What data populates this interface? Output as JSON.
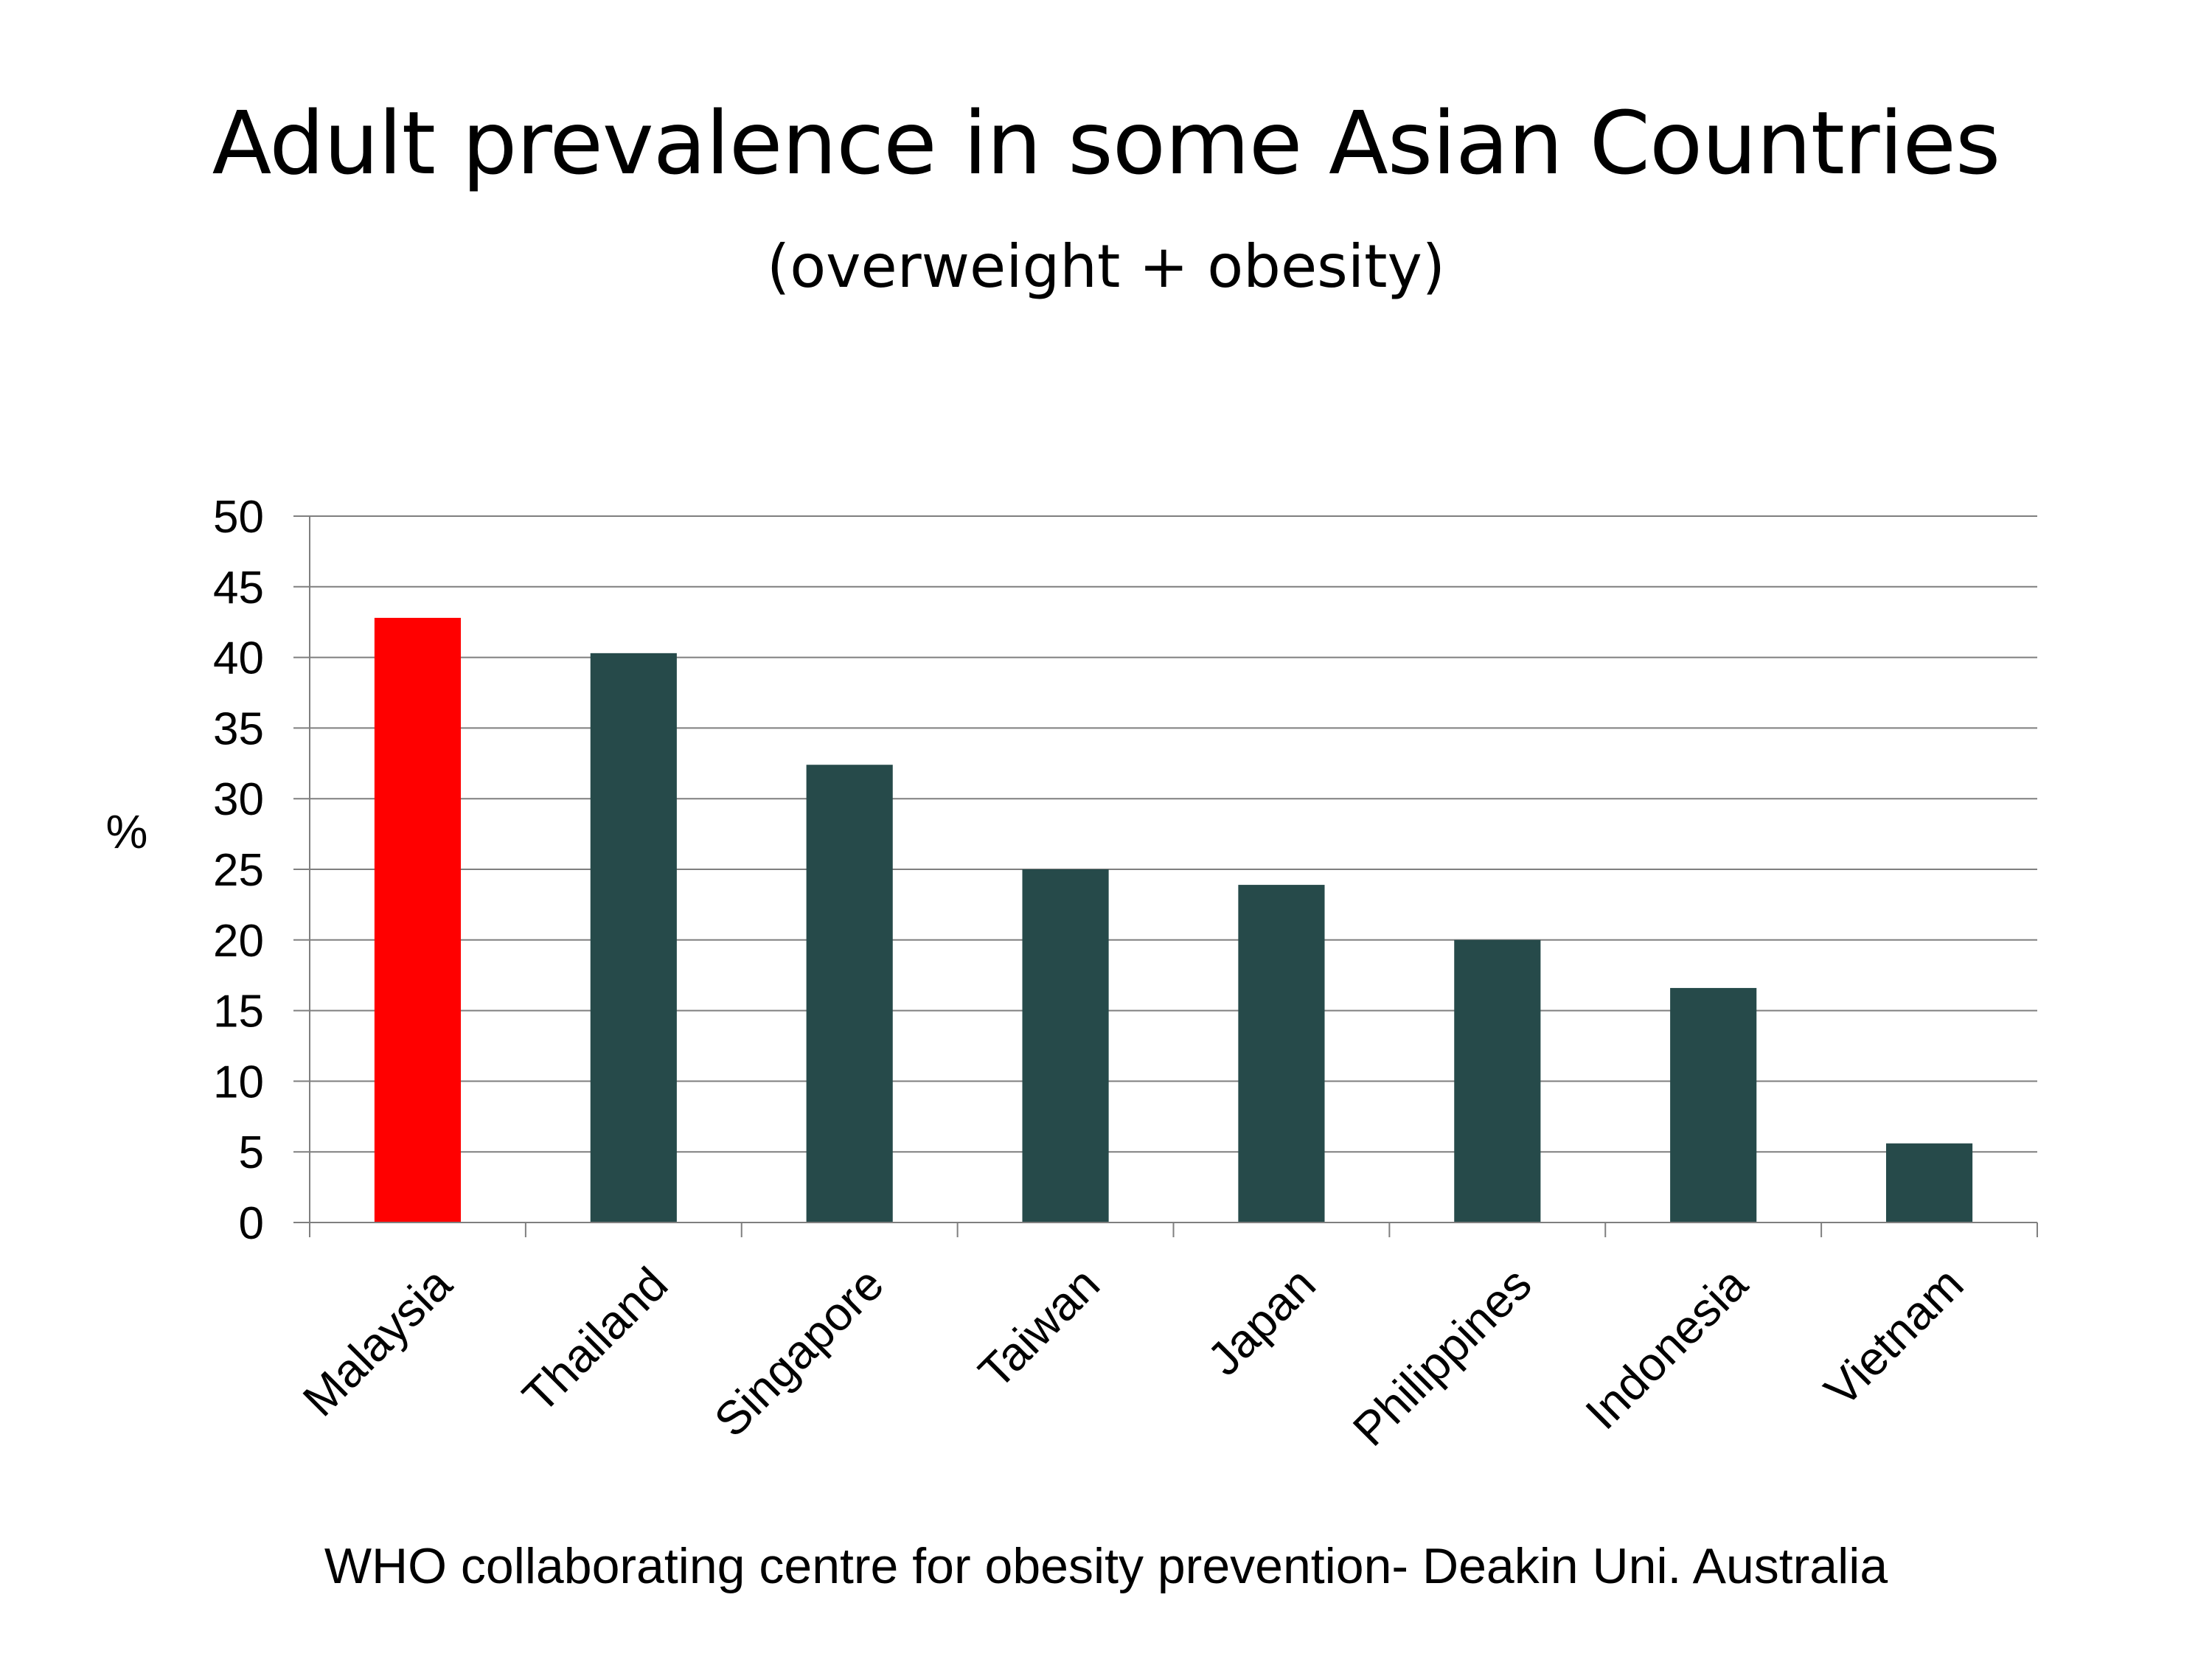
{
  "slide": {
    "title": "Adult prevalence in some Asian Countries",
    "subtitle": "(overweight + obesity)",
    "source": "WHO collaborating centre for obesity prevention- Deakin Uni. Australia"
  },
  "colors": {
    "highlight": "#ff0000",
    "bar": "#264a4a",
    "grid": "#7f7f7f",
    "text": "#000000"
  },
  "chart_data": {
    "type": "bar",
    "categories": [
      "Malaysia",
      "Thailand",
      "Singapore",
      "Taiwan",
      "Japan",
      "Philippines",
      "Indonesia",
      "Vietnam"
    ],
    "values": [
      42.8,
      40.3,
      32.4,
      25.0,
      23.9,
      20.0,
      16.6,
      5.6
    ],
    "highlight_index": 0,
    "title": "",
    "xlabel": "",
    "ylabel": "%",
    "ylim": [
      0,
      50
    ],
    "yticks": [
      0,
      5,
      10,
      15,
      20,
      25,
      30,
      35,
      40,
      45,
      50
    ],
    "grid": true,
    "legend": "none"
  }
}
